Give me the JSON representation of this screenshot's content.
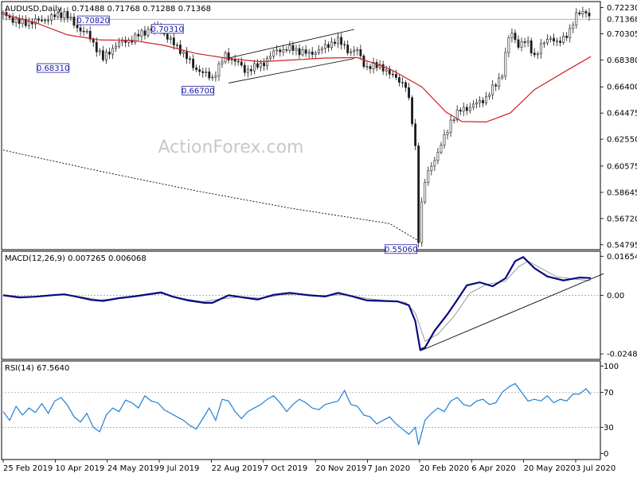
{
  "watermark": "ActionForex.com",
  "chart_data": [
    {
      "type": "candlestick",
      "panel": "price",
      "header": {
        "symbol": "AUDUSD,Daily",
        "ohlc": "0.71488 0.71768 0.71288 0.71368"
      },
      "y_ticks": [
        "0.72230",
        "0.71368",
        "0.70305",
        "0.68380",
        "0.66400",
        "0.64475",
        "0.62550",
        "0.60575",
        "0.58645",
        "0.56720",
        "0.54795"
      ],
      "ylim": [
        0.5455,
        0.7255
      ],
      "current_price": 0.71368,
      "last_price_label": "0.71368",
      "annotations": [
        {
          "label": "0.70820",
          "value": 0.7082
        },
        {
          "label": "0.68310",
          "value": 0.6831
        },
        {
          "label": "0.66700",
          "value": 0.667
        },
        {
          "label": "0.70310",
          "value": 0.7031
        },
        {
          "label": "0.55060",
          "value": 0.5506
        }
      ],
      "trendlines": [
        {
          "name": "channel-upper",
          "from": {
            "bar": 140,
            "value": 0.6852
          },
          "to": {
            "bar": 218,
            "value": 0.7062
          }
        },
        {
          "name": "channel-lower",
          "from": {
            "bar": 140,
            "value": 0.6668
          },
          "to": {
            "bar": 218,
            "value": 0.6848
          }
        }
      ],
      "ma_red": [
        [
          0,
          0.7175
        ],
        [
          20,
          0.7112
        ],
        [
          40,
          0.7022
        ],
        [
          60,
          0.6985
        ],
        [
          80,
          0.6982
        ],
        [
          100,
          0.6945
        ],
        [
          120,
          0.6885
        ],
        [
          140,
          0.6848
        ],
        [
          160,
          0.6825
        ],
        [
          180,
          0.6838
        ],
        [
          200,
          0.6852
        ],
        [
          220,
          0.6855
        ],
        [
          240,
          0.6772
        ],
        [
          260,
          0.664
        ],
        [
          275,
          0.6455
        ],
        [
          285,
          0.6385
        ],
        [
          300,
          0.6382
        ],
        [
          315,
          0.6448
        ],
        [
          330,
          0.662
        ],
        [
          350,
          0.676
        ],
        [
          365,
          0.6862
        ]
      ],
      "ma_dotted": [
        [
          0,
          0.6175
        ],
        [
          60,
          0.602
        ],
        [
          120,
          0.5875
        ],
        [
          180,
          0.5745
        ],
        [
          240,
          0.5635
        ],
        [
          257,
          0.5515
        ]
      ],
      "price_path": [
        [
          0,
          0.7175
        ],
        [
          10,
          0.711
        ],
        [
          20,
          0.712
        ],
        [
          30,
          0.715
        ],
        [
          38,
          0.7185
        ],
        [
          45,
          0.7085
        ],
        [
          52,
          0.703
        ],
        [
          60,
          0.689
        ],
        [
          62,
          0.6845
        ],
        [
          70,
          0.695
        ],
        [
          80,
          0.699
        ],
        [
          90,
          0.706
        ],
        [
          97,
          0.708
        ],
        [
          103,
          0.6985
        ],
        [
          110,
          0.6915
        ],
        [
          118,
          0.679
        ],
        [
          125,
          0.6735
        ],
        [
          130,
          0.6705
        ],
        [
          138,
          0.687
        ],
        [
          145,
          0.6825
        ],
        [
          150,
          0.676
        ],
        [
          160,
          0.68
        ],
        [
          170,
          0.691
        ],
        [
          180,
          0.692
        ],
        [
          190,
          0.688
        ],
        [
          200,
          0.693
        ],
        [
          207,
          0.699
        ],
        [
          215,
          0.69
        ],
        [
          220,
          0.6905
        ],
        [
          225,
          0.6785
        ],
        [
          235,
          0.6795
        ],
        [
          240,
          0.673
        ],
        [
          245,
          0.6705
        ],
        [
          250,
          0.664
        ],
        [
          253,
          0.648
        ],
        [
          256,
          0.62
        ],
        [
          258,
          0.552
        ],
        [
          261,
          0.59
        ],
        [
          265,
          0.605
        ],
        [
          270,
          0.615
        ],
        [
          278,
          0.639
        ],
        [
          285,
          0.648
        ],
        [
          290,
          0.649
        ],
        [
          300,
          0.656
        ],
        [
          305,
          0.664
        ],
        [
          310,
          0.674
        ],
        [
          312,
          0.688
        ],
        [
          315,
          0.705
        ],
        [
          320,
          0.695
        ],
        [
          325,
          0.6975
        ],
        [
          330,
          0.687
        ],
        [
          335,
          0.695
        ],
        [
          340,
          0.701
        ],
        [
          345,
          0.695
        ],
        [
          352,
          0.706
        ],
        [
          357,
          0.718
        ],
        [
          362,
          0.72
        ],
        [
          365,
          0.7137
        ]
      ],
      "x_tick_labels": [
        "25 Feb 2019",
        "10 Apr 2019",
        "24 May 2019",
        "9 Jul 2019",
        "22 Aug 2019",
        "7 Oct 2019",
        "20 Nov 2019",
        "7 Jan 2020",
        "20 Feb 2020",
        "6 Apr 2020",
        "20 May 2020",
        "3 Jul 2020"
      ]
    },
    {
      "type": "line",
      "panel": "macd",
      "header": "MACD(12,26,9) 0.007265 0.006068",
      "y_ticks": [
        "0.01654",
        "0.00",
        "-0.02486"
      ],
      "ylim": [
        -0.0265,
        0.018
      ],
      "macd": [
        [
          0,
          0.0
        ],
        [
          10,
          -0.0009
        ],
        [
          20,
          -0.0006
        ],
        [
          30,
          0.0
        ],
        [
          38,
          0.0004
        ],
        [
          45,
          -0.0005
        ],
        [
          55,
          -0.002
        ],
        [
          62,
          -0.0024
        ],
        [
          72,
          -0.0012
        ],
        [
          82,
          -0.0004
        ],
        [
          92,
          0.0006
        ],
        [
          98,
          0.0012
        ],
        [
          105,
          -0.0005
        ],
        [
          115,
          -0.0022
        ],
        [
          125,
          -0.0032
        ],
        [
          130,
          -0.0032
        ],
        [
          140,
          0.0
        ],
        [
          148,
          -0.0008
        ],
        [
          158,
          -0.0018
        ],
        [
          168,
          0.0002
        ],
        [
          178,
          0.001
        ],
        [
          190,
          0.0
        ],
        [
          200,
          -0.0005
        ],
        [
          208,
          0.001
        ],
        [
          216,
          -0.0003
        ],
        [
          226,
          -0.0022
        ],
        [
          236,
          -0.0024
        ],
        [
          245,
          -0.0026
        ],
        [
          252,
          -0.0042
        ],
        [
          256,
          -0.011
        ],
        [
          259,
          -0.023
        ],
        [
          262,
          -0.0222
        ],
        [
          268,
          -0.015
        ],
        [
          276,
          -0.008
        ],
        [
          282,
          -0.002
        ],
        [
          288,
          0.0042
        ],
        [
          296,
          0.0055
        ],
        [
          304,
          0.0038
        ],
        [
          312,
          0.0072
        ],
        [
          318,
          0.0145
        ],
        [
          323,
          0.0162
        ],
        [
          330,
          0.0115
        ],
        [
          338,
          0.008
        ],
        [
          348,
          0.0063
        ],
        [
          358,
          0.0075
        ],
        [
          365,
          0.0073
        ]
      ],
      "signal": [
        [
          0,
          0.0002
        ],
        [
          12,
          -0.0007
        ],
        [
          24,
          -0.0004
        ],
        [
          36,
          0.0002
        ],
        [
          48,
          -0.0006
        ],
        [
          60,
          -0.002
        ],
        [
          74,
          -0.0013
        ],
        [
          86,
          -0.0002
        ],
        [
          98,
          0.0008
        ],
        [
          110,
          -0.0012
        ],
        [
          124,
          -0.0027
        ],
        [
          136,
          -0.0015
        ],
        [
          148,
          -0.0006
        ],
        [
          160,
          -0.0013
        ],
        [
          172,
          0.0001
        ],
        [
          184,
          0.0006
        ],
        [
          198,
          -0.0002
        ],
        [
          212,
          0.0003
        ],
        [
          226,
          -0.0014
        ],
        [
          240,
          -0.0024
        ],
        [
          250,
          -0.003
        ],
        [
          256,
          -0.0075
        ],
        [
          262,
          -0.0195
        ],
        [
          270,
          -0.0165
        ],
        [
          280,
          -0.009
        ],
        [
          290,
          0.001
        ],
        [
          300,
          0.0045
        ],
        [
          312,
          0.006
        ],
        [
          320,
          0.012
        ],
        [
          326,
          0.0145
        ],
        [
          334,
          0.0115
        ],
        [
          344,
          0.0078
        ],
        [
          356,
          0.0068
        ],
        [
          365,
          0.0061
        ]
      ],
      "trendline": {
        "from": {
          "bar": 259,
          "value": -0.0236
        },
        "to": {
          "bar": 373,
          "value": 0.0092
        }
      }
    },
    {
      "type": "line",
      "panel": "rsi",
      "header": "RSI(14) 67.5640",
      "y_ticks": [
        "100",
        "70",
        "30",
        "0"
      ],
      "ylim": [
        -5,
        104
      ],
      "levels": [
        70,
        30
      ],
      "rsi": [
        [
          0,
          48
        ],
        [
          4,
          38
        ],
        [
          8,
          54
        ],
        [
          12,
          44
        ],
        [
          16,
          52
        ],
        [
          20,
          47
        ],
        [
          24,
          57
        ],
        [
          28,
          46
        ],
        [
          32,
          60
        ],
        [
          36,
          64
        ],
        [
          40,
          55
        ],
        [
          44,
          42
        ],
        [
          48,
          36
        ],
        [
          52,
          46
        ],
        [
          56,
          30
        ],
        [
          60,
          25
        ],
        [
          64,
          44
        ],
        [
          68,
          52
        ],
        [
          72,
          48
        ],
        [
          76,
          61
        ],
        [
          80,
          58
        ],
        [
          84,
          52
        ],
        [
          88,
          66
        ],
        [
          92,
          60
        ],
        [
          96,
          58
        ],
        [
          100,
          50
        ],
        [
          104,
          46
        ],
        [
          108,
          42
        ],
        [
          112,
          38
        ],
        [
          116,
          32
        ],
        [
          120,
          28
        ],
        [
          124,
          40
        ],
        [
          128,
          52
        ],
        [
          132,
          38
        ],
        [
          136,
          62
        ],
        [
          140,
          60
        ],
        [
          144,
          48
        ],
        [
          148,
          40
        ],
        [
          152,
          48
        ],
        [
          156,
          52
        ],
        [
          160,
          56
        ],
        [
          164,
          62
        ],
        [
          168,
          66
        ],
        [
          172,
          58
        ],
        [
          176,
          48
        ],
        [
          180,
          56
        ],
        [
          184,
          62
        ],
        [
          188,
          58
        ],
        [
          192,
          52
        ],
        [
          196,
          50
        ],
        [
          200,
          56
        ],
        [
          204,
          58
        ],
        [
          208,
          60
        ],
        [
          212,
          72
        ],
        [
          216,
          56
        ],
        [
          220,
          54
        ],
        [
          224,
          44
        ],
        [
          228,
          42
        ],
        [
          232,
          34
        ],
        [
          236,
          38
        ],
        [
          240,
          42
        ],
        [
          244,
          34
        ],
        [
          248,
          28
        ],
        [
          252,
          22
        ],
        [
          256,
          30
        ],
        [
          258,
          10
        ],
        [
          262,
          38
        ],
        [
          266,
          46
        ],
        [
          270,
          52
        ],
        [
          274,
          48
        ],
        [
          278,
          60
        ],
        [
          282,
          64
        ],
        [
          286,
          56
        ],
        [
          290,
          54
        ],
        [
          294,
          60
        ],
        [
          298,
          62
        ],
        [
          302,
          56
        ],
        [
          306,
          58
        ],
        [
          310,
          70
        ],
        [
          314,
          76
        ],
        [
          318,
          80
        ],
        [
          322,
          70
        ],
        [
          326,
          60
        ],
        [
          330,
          62
        ],
        [
          334,
          60
        ],
        [
          338,
          66
        ],
        [
          342,
          58
        ],
        [
          346,
          62
        ],
        [
          350,
          60
        ],
        [
          354,
          68
        ],
        [
          358,
          68
        ],
        [
          362,
          74
        ],
        [
          365,
          67.6
        ]
      ]
    }
  ]
}
